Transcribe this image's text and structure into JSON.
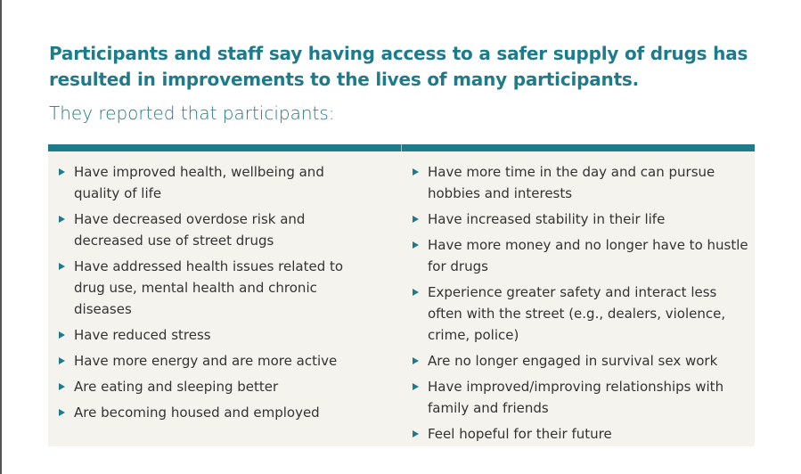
{
  "heading": {
    "title": "Participants and staff say having access to a safer supply of drugs has resulted in improvements to the lives of many participants.",
    "subtitle": "They reported that participants:"
  },
  "colors": {
    "accent": "#1d7b8a",
    "panel": "#f5f3ee",
    "text": "#333333"
  },
  "bullet_icon": "triangle-right",
  "left_items": [
    "Have improved health, wellbeing and quality of life",
    "Have decreased overdose risk and decreased use of street drugs",
    "Have addressed health issues related to drug use, mental health and chronic diseases",
    "Have reduced stress",
    "Have more energy and are more active",
    "Are eating and sleeping better",
    "Are becoming housed and employed"
  ],
  "right_items": [
    "Have more time in the day and can pursue hobbies and interests",
    "Have increased stability in their life",
    "Have more money and no longer have to hustle for drugs",
    "Experience greater safety and interact less often with the street (e.g., dealers, violence, crime, police)",
    "Are no longer engaged in survival sex work",
    "Have improved/improving relationships with family and friends",
    "Feel hopeful for their future"
  ]
}
